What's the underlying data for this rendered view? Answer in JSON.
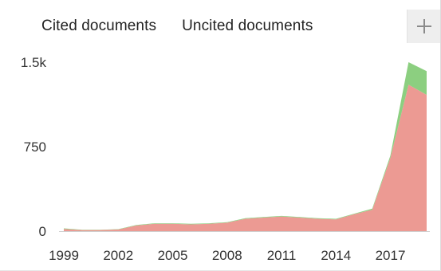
{
  "legend": {
    "cited_label": "Cited documents",
    "uncited_label": "Uncited documents"
  },
  "add_button": {
    "icon": "plus-icon"
  },
  "colors": {
    "cited": "#ec9a93",
    "uncited": "#8ccf80",
    "axis_line": "#cfcfcf"
  },
  "chart_data": {
    "type": "area",
    "stacked": true,
    "title": "",
    "xlabel": "",
    "ylabel": "",
    "x": [
      1999,
      2000,
      2001,
      2002,
      2003,
      2004,
      2005,
      2006,
      2007,
      2008,
      2009,
      2010,
      2011,
      2012,
      2013,
      2014,
      2015,
      2016,
      2017,
      2018,
      2019
    ],
    "series": [
      {
        "name": "Cited documents",
        "values": [
          20,
          10,
          10,
          15,
          50,
          65,
          65,
          60,
          65,
          75,
          110,
          120,
          130,
          120,
          110,
          105,
          150,
          190,
          650,
          1300,
          1210
        ]
      },
      {
        "name": "Uncited documents",
        "values": [
          5,
          2,
          2,
          3,
          5,
          5,
          5,
          5,
          5,
          5,
          5,
          5,
          5,
          5,
          5,
          5,
          5,
          10,
          20,
          200,
          210
        ]
      }
    ],
    "xlim": [
      1999,
      2019
    ],
    "ylim": [
      0,
      1500
    ],
    "xticks": [
      "1999",
      "2002",
      "2005",
      "2008",
      "2011",
      "2014",
      "2017"
    ],
    "yticks": [
      "0",
      "750",
      "1.5k"
    ],
    "ytick_values": [
      0,
      750,
      1500
    ],
    "grid": false,
    "legend_position": "top-left"
  }
}
